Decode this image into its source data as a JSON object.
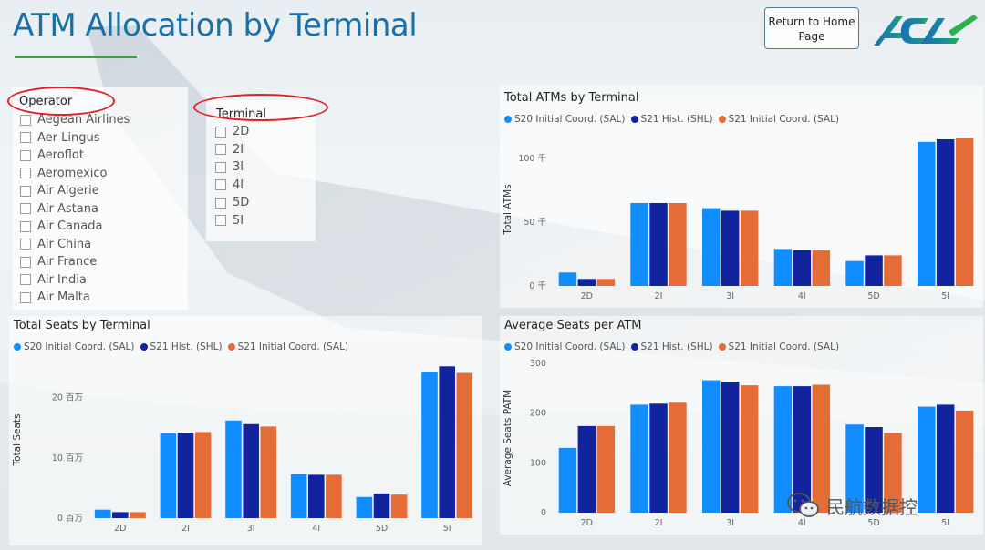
{
  "title": "ATM Allocation by Terminal",
  "home_button": {
    "line1": "Return to Home",
    "line2": "Page"
  },
  "logo": {
    "text": "ACL",
    "icon": "acl-logo"
  },
  "operator_slicer": {
    "title": "Operator",
    "items": [
      "Aegean Airlines",
      "Aer Lingus",
      "Aeroflot",
      "Aeromexico",
      "Air Algerie",
      "Air Astana",
      "Air Canada",
      "Air China",
      "Air France",
      "Air India",
      "Air Malta"
    ]
  },
  "terminal_slicer": {
    "title": "Terminal",
    "items": [
      "2D",
      "2I",
      "3I",
      "4I",
      "5D",
      "5I"
    ]
  },
  "colors": {
    "s20_sal": "#118dff",
    "s21_shl": "#12239e",
    "s21_sal": "#e66c37",
    "annotation": "#e3202a",
    "title": "#1a6fa5"
  },
  "chart_data": [
    {
      "id": "atms",
      "type": "bar",
      "title": "Total ATMs by Terminal",
      "ylabel": "Total ATMs",
      "xlabel": "",
      "categories": [
        "2D",
        "2I",
        "3I",
        "4I",
        "5D",
        "5I"
      ],
      "series": [
        {
          "name": "S20 Initial Coord. (SAL)",
          "values": [
            10500,
            65000,
            61000,
            29000,
            19500,
            113000
          ]
        },
        {
          "name": "S21 Hist. (SHL)",
          "values": [
            5500,
            65000,
            59000,
            28000,
            24000,
            115000
          ]
        },
        {
          "name": "S21 Initial Coord. (SAL)",
          "values": [
            5500,
            65000,
            59000,
            28000,
            24000,
            116000
          ]
        }
      ],
      "ylim": [
        0,
        120000
      ],
      "yticks": [
        0,
        50000,
        100000
      ],
      "ytick_labels": [
        "0 千",
        "50 千",
        "100 千"
      ],
      "grid": false,
      "legend": "top-left"
    },
    {
      "id": "seats",
      "type": "bar",
      "title": "Total Seats by Terminal",
      "ylabel": "Total Seats",
      "xlabel": "",
      "categories": [
        "2D",
        "2I",
        "3I",
        "4I",
        "5D",
        "5I"
      ],
      "series": [
        {
          "name": "S20 Initial Coord. (SAL)",
          "values": [
            1.4,
            14.1,
            16.2,
            7.3,
            3.5,
            24.3
          ]
        },
        {
          "name": "S21 Hist. (SHL)",
          "values": [
            1.0,
            14.2,
            15.6,
            7.2,
            4.1,
            25.2
          ]
        },
        {
          "name": "S21 Initial Coord. (SAL)",
          "values": [
            1.0,
            14.3,
            15.2,
            7.2,
            3.9,
            24.1
          ]
        }
      ],
      "ylim": [
        0,
        26
      ],
      "yticks": [
        0,
        10,
        20
      ],
      "ytick_labels": [
        "0 百万",
        "10 百万",
        "20 百万"
      ],
      "grid": false,
      "legend": "top-left"
    },
    {
      "id": "avgseats",
      "type": "bar",
      "title": "Average Seats per ATM",
      "ylabel": "Average Seats PATM",
      "xlabel": "",
      "categories": [
        "2D",
        "2I",
        "3I",
        "4I",
        "5D",
        "5I"
      ],
      "series": [
        {
          "name": "S20 Initial Coord. (SAL)",
          "values": [
            130,
            217,
            266,
            254,
            177,
            213
          ]
        },
        {
          "name": "S21 Hist. (SHL)",
          "values": [
            174,
            219,
            263,
            254,
            172,
            217
          ]
        },
        {
          "name": "S21 Initial Coord. (SAL)",
          "values": [
            174,
            221,
            256,
            257,
            160,
            205
          ]
        }
      ],
      "ylim": [
        0,
        300
      ],
      "yticks": [
        0,
        100,
        200,
        300
      ],
      "ytick_labels": [
        "0",
        "100",
        "200",
        "300"
      ],
      "grid": false,
      "legend": "top-left"
    }
  ],
  "watermark": {
    "text": "民航数据控",
    "icon": "wechat-icon"
  }
}
